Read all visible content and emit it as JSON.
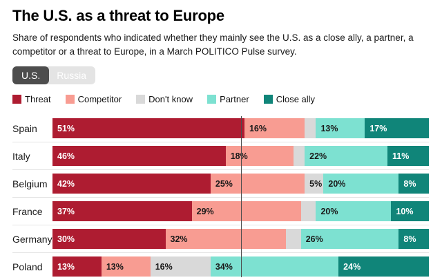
{
  "header": {
    "title": "The U.S. as a threat to Europe",
    "subtitle": "Share of respondents who indicated whether they mainly see the U.S. as a close ally, a partner, a competitor or a threat to Europe, in a March POLITICO Pulse survey."
  },
  "toggle": {
    "us_label": "U.S.",
    "russia_label": "Russia",
    "selected": "U.S.",
    "active_color": "#4d4d4d",
    "inactive_color": "#e4e4e4"
  },
  "chart_data": {
    "type": "bar",
    "stacked": true,
    "orientation": "horizontal",
    "unit": "%",
    "xlim": [
      0,
      100
    ],
    "legend_position": "top",
    "grid": false,
    "reference_line": {
      "value": 50
    },
    "label_min_value": 5,
    "categories": [
      "Spain",
      "Italy",
      "Belgium",
      "France",
      "Germany",
      "Poland"
    ],
    "series": [
      {
        "name": "Threat",
        "color": "#ae1c31",
        "text_color": "#ffffff",
        "values": [
          51,
          46,
          42,
          37,
          30,
          13
        ]
      },
      {
        "name": "Competitor",
        "color": "#f89c92",
        "text_color": "#1a1a1a",
        "values": [
          16,
          18,
          25,
          29,
          32,
          13
        ]
      },
      {
        "name": "Don't know",
        "color": "#d9d9d9",
        "text_color": "#1a1a1a",
        "values": [
          3,
          3,
          5,
          4,
          4,
          16
        ]
      },
      {
        "name": "Partner",
        "color": "#7de1d1",
        "text_color": "#1a1a1a",
        "values": [
          13,
          22,
          20,
          20,
          26,
          34
        ]
      },
      {
        "name": "Close ally",
        "color": "#108579",
        "text_color": "#ffffff",
        "values": [
          17,
          11,
          8,
          10,
          8,
          24
        ]
      }
    ]
  }
}
